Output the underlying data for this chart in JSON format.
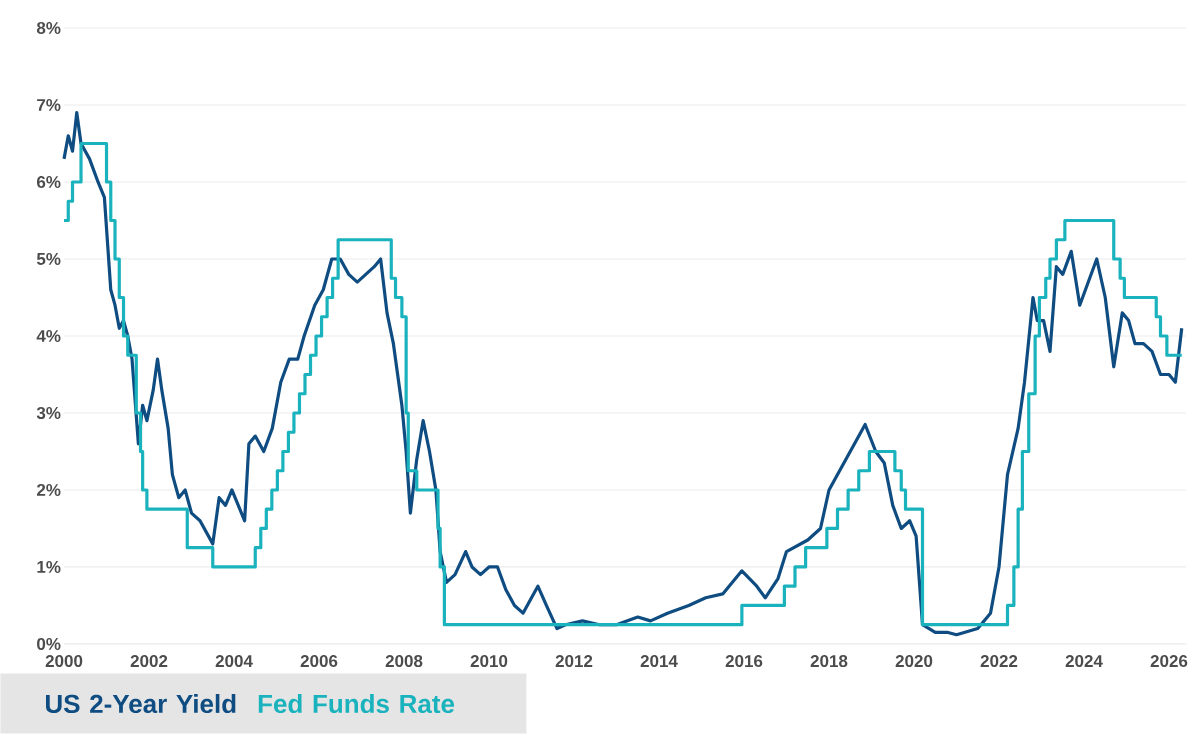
{
  "chart_data": {
    "type": "line",
    "xlim": [
      2000,
      2026.4
    ],
    "xticks": [
      2000,
      2002,
      2004,
      2006,
      2008,
      2010,
      2012,
      2014,
      2016,
      2018,
      2020,
      2022,
      2024,
      2026
    ],
    "ylim": [
      0,
      8
    ],
    "yticks": [
      {
        "value": 0,
        "label": "0%"
      },
      {
        "value": 1,
        "label": "1%"
      },
      {
        "value": 2,
        "label": "2%"
      },
      {
        "value": 3,
        "label": "3%"
      },
      {
        "value": 4,
        "label": "4%"
      },
      {
        "value": 5,
        "label": "5%"
      },
      {
        "value": 6,
        "label": "6%"
      },
      {
        "value": 7,
        "label": "7%"
      },
      {
        "value": 8,
        "label": "8%"
      }
    ],
    "grid": "y",
    "legend": "bottom left",
    "series": [
      {
        "name": "US 2-Year Yield",
        "color": "#0f4c81",
        "x": [
          2000.0,
          2000.1,
          2000.2,
          2000.3,
          2000.4,
          2000.6,
          2000.8,
          2000.95,
          2001.05,
          2001.1,
          2001.2,
          2001.3,
          2001.4,
          2001.5,
          2001.6,
          2001.75,
          2001.85,
          2001.95,
          2002.1,
          2002.2,
          2002.3,
          2002.45,
          2002.55,
          2002.7,
          2002.85,
          2003.0,
          2003.2,
          2003.4,
          2003.5,
          2003.65,
          2003.8,
          2003.95,
          2004.1,
          2004.25,
          2004.35,
          2004.5,
          2004.7,
          2004.9,
          2005.1,
          2005.3,
          2005.5,
          2005.65,
          2005.9,
          2006.1,
          2006.3,
          2006.5,
          2006.7,
          2006.9,
          2007.1,
          2007.3,
          2007.45,
          2007.6,
          2007.75,
          2007.95,
          2008.05,
          2008.15,
          2008.3,
          2008.45,
          2008.6,
          2008.75,
          2008.85,
          2009.0,
          2009.2,
          2009.45,
          2009.6,
          2009.8,
          2010.0,
          2010.2,
          2010.4,
          2010.6,
          2010.8,
          2011.0,
          2011.15,
          2011.35,
          2011.6,
          2011.8,
          2012.2,
          2012.6,
          2013.0,
          2013.5,
          2013.8,
          2014.2,
          2014.7,
          2015.1,
          2015.5,
          2015.95,
          2016.3,
          2016.5,
          2016.8,
          2017.0,
          2017.5,
          2017.8,
          2018.0,
          2018.3,
          2018.6,
          2018.85,
          2019.1,
          2019.3,
          2019.5,
          2019.7,
          2019.9,
          2020.05,
          2020.2,
          2020.5,
          2020.8,
          2021.0,
          2021.5,
          2021.8,
          2022.0,
          2022.2,
          2022.45,
          2022.6,
          2022.8,
          2022.9,
          2023.05,
          2023.2,
          2023.35,
          2023.5,
          2023.7,
          2023.9,
          2024.1,
          2024.3,
          2024.5,
          2024.7,
          2024.9,
          2025.05,
          2025.2,
          2025.4,
          2025.6,
          2025.8,
          2026.0,
          2026.15,
          2026.3
        ],
        "values": [
          6.3,
          6.6,
          6.4,
          6.9,
          6.5,
          6.3,
          6.0,
          5.8,
          5.0,
          4.6,
          4.4,
          4.1,
          4.2,
          4.0,
          3.7,
          2.6,
          3.1,
          2.9,
          3.3,
          3.7,
          3.3,
          2.8,
          2.2,
          1.9,
          2.0,
          1.7,
          1.6,
          1.4,
          1.3,
          1.9,
          1.8,
          2.0,
          1.8,
          1.6,
          2.6,
          2.7,
          2.5,
          2.8,
          3.4,
          3.7,
          3.7,
          4.0,
          4.4,
          4.6,
          5.0,
          5.0,
          4.8,
          4.7,
          4.8,
          4.9,
          5.0,
          4.3,
          3.9,
          3.1,
          2.5,
          1.7,
          2.4,
          2.9,
          2.5,
          2.0,
          1.2,
          0.8,
          0.9,
          1.2,
          1.0,
          0.9,
          1.0,
          1.0,
          0.7,
          0.5,
          0.4,
          0.6,
          0.75,
          0.5,
          0.2,
          0.25,
          0.3,
          0.25,
          0.25,
          0.35,
          0.3,
          0.4,
          0.5,
          0.6,
          0.65,
          0.95,
          0.75,
          0.6,
          0.85,
          1.2,
          1.35,
          1.5,
          2.0,
          2.3,
          2.6,
          2.85,
          2.5,
          2.35,
          1.8,
          1.5,
          1.6,
          1.4,
          0.25,
          0.15,
          0.15,
          0.12,
          0.2,
          0.4,
          1.0,
          2.2,
          2.8,
          3.4,
          4.5,
          4.2,
          4.2,
          3.8,
          4.9,
          4.8,
          5.1,
          4.4,
          4.7,
          5.0,
          4.5,
          3.6,
          4.3,
          4.2,
          3.9,
          3.9,
          3.8,
          3.5,
          3.5,
          3.4,
          4.1
        ]
      },
      {
        "name": "Fed Funds Rate",
        "color": "#1ab3bd",
        "type": "step",
        "x": [
          2000.0,
          2000.1,
          2000.2,
          2000.4,
          2001.0,
          2001.1,
          2001.2,
          2001.3,
          2001.4,
          2001.5,
          2001.7,
          2001.8,
          2001.85,
          2001.95,
          2002.9,
          2003.5,
          2004.5,
          2004.63,
          2004.76,
          2004.89,
          2005.02,
          2005.15,
          2005.28,
          2005.41,
          2005.54,
          2005.67,
          2005.8,
          2005.93,
          2006.06,
          2006.19,
          2006.32,
          2006.45,
          2007.7,
          2007.8,
          2007.95,
          2008.05,
          2008.1,
          2008.3,
          2008.8,
          2008.85,
          2008.95,
          2015.95,
          2016.95,
          2017.2,
          2017.45,
          2017.95,
          2018.2,
          2018.45,
          2018.7,
          2018.95,
          2019.55,
          2019.7,
          2019.8,
          2020.2,
          2022.2,
          2022.35,
          2022.45,
          2022.55,
          2022.7,
          2022.85,
          2022.95,
          2023.1,
          2023.2,
          2023.35,
          2023.55,
          2024.7,
          2024.85,
          2024.95,
          2025.7,
          2025.8,
          2025.95,
          2026.3
        ],
        "values": [
          5.5,
          5.75,
          6.0,
          6.5,
          6.0,
          5.5,
          5.0,
          4.5,
          4.0,
          3.75,
          3.0,
          2.5,
          2.0,
          1.75,
          1.25,
          1.0,
          1.25,
          1.5,
          1.75,
          2.0,
          2.25,
          2.5,
          2.75,
          3.0,
          3.25,
          3.5,
          3.75,
          4.0,
          4.25,
          4.5,
          4.75,
          5.25,
          4.75,
          4.5,
          4.25,
          3.0,
          2.25,
          2.0,
          1.5,
          1.0,
          0.25,
          0.5,
          0.75,
          1.0,
          1.25,
          1.5,
          1.75,
          2.0,
          2.25,
          2.5,
          2.25,
          2.0,
          1.75,
          0.25,
          0.5,
          1.0,
          1.75,
          2.5,
          3.25,
          4.0,
          4.5,
          4.75,
          5.0,
          5.25,
          5.5,
          5.0,
          4.75,
          4.5,
          4.25,
          4.0,
          3.75,
          3.75
        ]
      }
    ]
  }
}
